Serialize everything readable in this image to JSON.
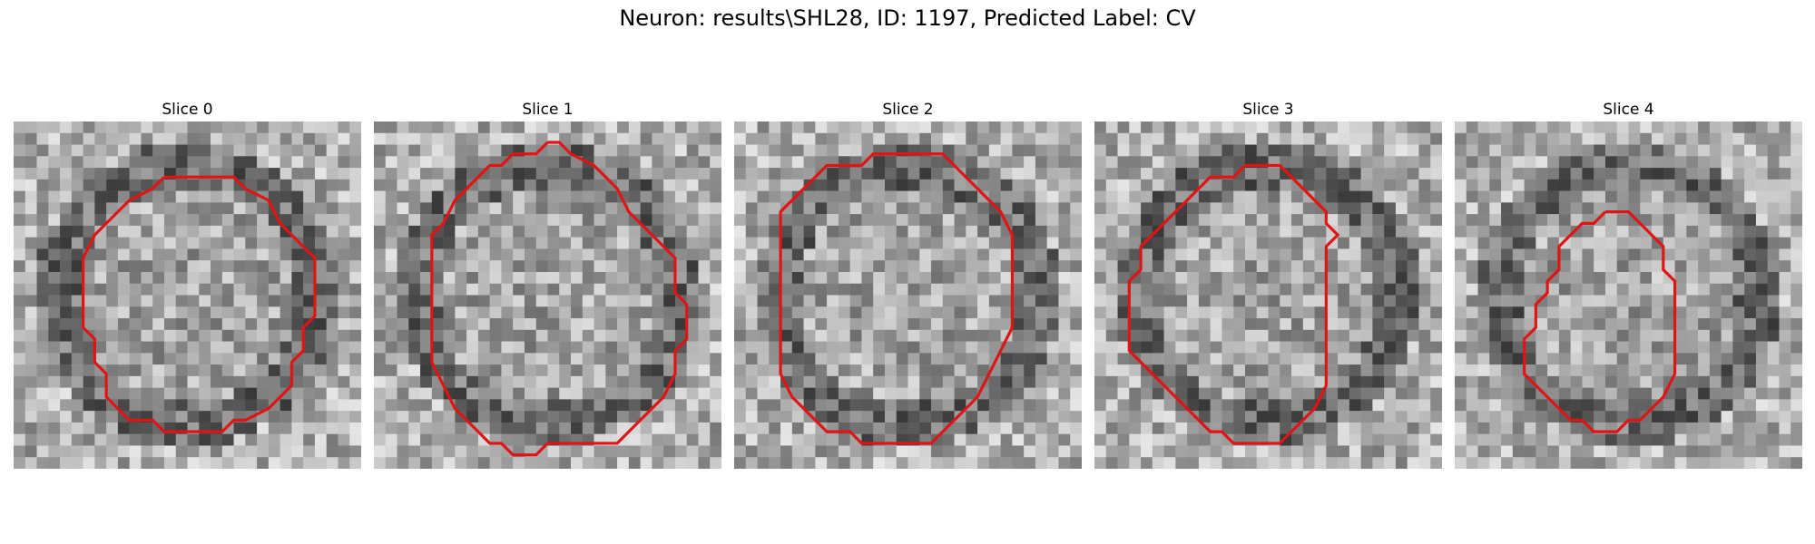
{
  "figure": {
    "title": "Neuron: results\\SHL28, ID: 1197, Predicted Label: CV"
  },
  "colors": {
    "contour": "#e01414",
    "background": "#ffffff"
  },
  "panels": [
    {
      "title": "Slice 0"
    },
    {
      "title": "Slice 1"
    },
    {
      "title": "Slice 2"
    },
    {
      "title": "Slice 3"
    },
    {
      "title": "Slice 4"
    }
  ]
}
